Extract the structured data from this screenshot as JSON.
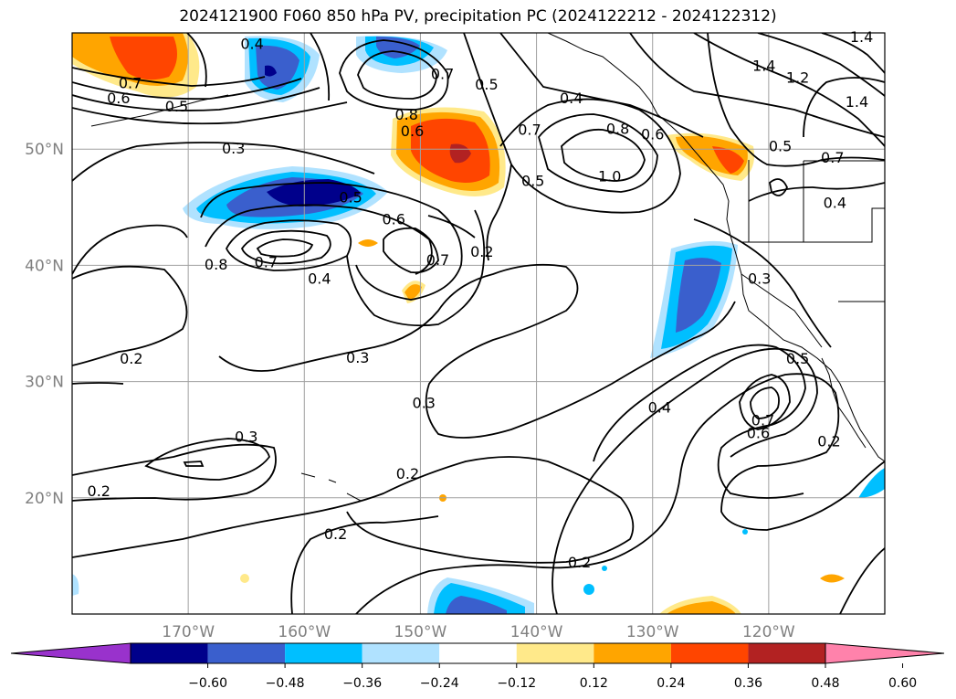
{
  "title": "2024121900 F060 850 hPa PV, precipitation PC (2024122212 - 2024122312)",
  "map": {
    "lon_range": [
      -180,
      -110
    ],
    "lat_range": [
      10,
      60
    ],
    "lon_ticks": [
      {
        "lon": -170,
        "label": "170°W"
      },
      {
        "lon": -160,
        "label": "160°W"
      },
      {
        "lon": -150,
        "label": "150°W"
      },
      {
        "lon": -140,
        "label": "140°W"
      },
      {
        "lon": -130,
        "label": "130°W"
      },
      {
        "lon": -120,
        "label": "120°W"
      }
    ],
    "lat_ticks": [
      {
        "lat": 50,
        "label": "50°N"
      },
      {
        "lat": 40,
        "label": "40°N"
      },
      {
        "lat": 30,
        "label": "30°N"
      },
      {
        "lat": 20,
        "label": "20°N"
      }
    ],
    "grid": true,
    "contour_labels": [
      {
        "text": "0.4",
        "lon": -164.5,
        "lat": 59.1
      },
      {
        "text": "0.7",
        "lon": -175,
        "lat": 55.7
      },
      {
        "text": "0.6",
        "lon": -176,
        "lat": 54.4
      },
      {
        "text": "0.5",
        "lon": -171,
        "lat": 53.7
      },
      {
        "text": "0.7",
        "lon": -148.1,
        "lat": 56.5
      },
      {
        "text": "0.5",
        "lon": -144.3,
        "lat": 55.6
      },
      {
        "text": "0.4",
        "lon": -137,
        "lat": 54.4
      },
      {
        "text": "1.4",
        "lon": -112,
        "lat": 59.7
      },
      {
        "text": "1.4",
        "lon": -120.4,
        "lat": 57.2
      },
      {
        "text": "1.2",
        "lon": -117.5,
        "lat": 56.2
      },
      {
        "text": "1.4",
        "lon": -112.4,
        "lat": 54.1
      },
      {
        "text": "0.8",
        "lon": -151.2,
        "lat": 53.0
      },
      {
        "text": "0.6",
        "lon": -150.7,
        "lat": 51.6
      },
      {
        "text": "0.7",
        "lon": -140.6,
        "lat": 51.7
      },
      {
        "text": "0.8",
        "lon": -133,
        "lat": 51.8
      },
      {
        "text": "0.6",
        "lon": -130,
        "lat": 51.3
      },
      {
        "text": "0.3",
        "lon": -166.1,
        "lat": 50.1
      },
      {
        "text": "0.5",
        "lon": -119,
        "lat": 50.3
      },
      {
        "text": "0.7",
        "lon": -114.5,
        "lat": 49.3
      },
      {
        "text": "1.0",
        "lon": -133.7,
        "lat": 47.7
      },
      {
        "text": "0.5",
        "lon": -140.3,
        "lat": 47.3
      },
      {
        "text": "0.5",
        "lon": -156,
        "lat": 45.9
      },
      {
        "text": "0.6",
        "lon": -152.3,
        "lat": 44.0
      },
      {
        "text": "0.4",
        "lon": -114.3,
        "lat": 45.4
      },
      {
        "text": "0.2",
        "lon": -144.7,
        "lat": 41.2
      },
      {
        "text": "0.7",
        "lon": -148.5,
        "lat": 40.5
      },
      {
        "text": "0.8",
        "lon": -167.6,
        "lat": 40.1
      },
      {
        "text": "0.7",
        "lon": -163.3,
        "lat": 40.3
      },
      {
        "text": "0.4",
        "lon": -158.7,
        "lat": 38.9
      },
      {
        "text": "0.3",
        "lon": -120.8,
        "lat": 38.9
      },
      {
        "text": "0.3",
        "lon": -155.4,
        "lat": 32.1
      },
      {
        "text": "0.5",
        "lon": -117.5,
        "lat": 32.0
      },
      {
        "text": "0.2",
        "lon": -174.9,
        "lat": 32.0
      },
      {
        "text": "0.3",
        "lon": -149.7,
        "lat": 28.2
      },
      {
        "text": "0.4",
        "lon": -129.4,
        "lat": 27.8
      },
      {
        "text": "0.7",
        "lon": -120.5,
        "lat": 26.7
      },
      {
        "text": "0.6",
        "lon": -120.9,
        "lat": 25.6
      },
      {
        "text": "0.3",
        "lon": -165,
        "lat": 25.3
      },
      {
        "text": "0.2",
        "lon": -114.8,
        "lat": 24.9
      },
      {
        "text": "0.2",
        "lon": -177.7,
        "lat": 20.6
      },
      {
        "text": "0.2",
        "lon": -151.1,
        "lat": 22.1
      },
      {
        "text": "0.2",
        "lon": -157.3,
        "lat": 16.9
      },
      {
        "text": "0.2",
        "lon": -136.3,
        "lat": 14.5
      }
    ]
  },
  "colorbar": {
    "ticks": [
      "−0.60",
      "−0.48",
      "−0.36",
      "−0.24",
      "−0.12",
      "0.12",
      "0.24",
      "0.36",
      "0.48",
      "0.60"
    ],
    "colors": [
      "#9932cc",
      "#00008b",
      "#3a5fcd",
      "#00bfff",
      "#b0e2ff",
      "#ffffff",
      "#ffe98a",
      "#ffa500",
      "#ff4500",
      "#b22222",
      "#ff82ab"
    ]
  },
  "colors": {
    "land": "#ffffff",
    "contour": "#000000",
    "grid": "#a0a0a0",
    "tick_label": "#808080"
  }
}
